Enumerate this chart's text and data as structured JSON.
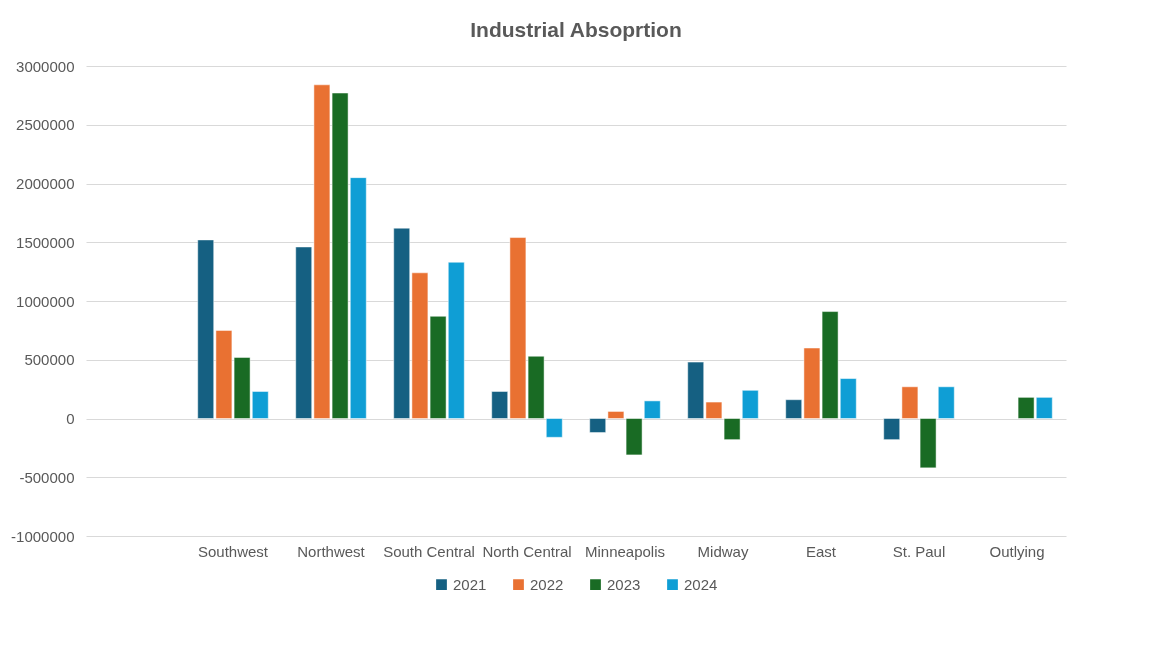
{
  "chart_data": {
    "type": "bar",
    "title": "Industrial Absoprtion",
    "categories": [
      null,
      "Southwest",
      "Northwest",
      "South Central",
      "North Central",
      "Minneapolis",
      "Midway",
      "East",
      "St. Paul",
      "Outlying"
    ],
    "series": [
      {
        "name": "2021",
        "color": "#156082",
        "values": [
          null,
          1520000,
          1460000,
          1620000,
          230000,
          -120000,
          480000,
          160000,
          -180000,
          null
        ]
      },
      {
        "name": "2022",
        "color": "#e97132",
        "values": [
          null,
          750000,
          2840000,
          1240000,
          1540000,
          60000,
          140000,
          600000,
          270000,
          null
        ]
      },
      {
        "name": "2023",
        "color": "#196b24",
        "values": [
          null,
          520000,
          2770000,
          870000,
          530000,
          -310000,
          -180000,
          910000,
          -420000,
          180000
        ]
      },
      {
        "name": "2024",
        "color": "#0f9ed5",
        "values": [
          null,
          230000,
          2050000,
          1330000,
          -160000,
          150000,
          240000,
          340000,
          270000,
          180000
        ]
      }
    ],
    "ylim": [
      -1000000,
      3000000
    ],
    "yticks": [
      -1000000,
      -500000,
      0,
      500000,
      1000000,
      1500000,
      2000000,
      2500000,
      3000000
    ],
    "grid": "y",
    "legend": "bottom"
  }
}
